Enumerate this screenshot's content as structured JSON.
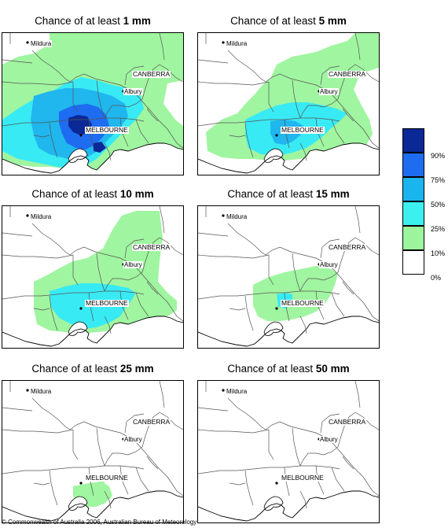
{
  "panels": [
    {
      "prefix": "Chance of at least ",
      "amount": "1 mm",
      "levels": {
        "green": 1,
        "cyan": 1,
        "med": 1,
        "blue": 1,
        "dark": 1
      }
    },
    {
      "prefix": "Chance of at least ",
      "amount": "5 mm",
      "levels": {
        "green": 1,
        "cyan": 1,
        "med": 1
      }
    },
    {
      "prefix": "Chance of at least ",
      "amount": "10 mm",
      "levels": {
        "green": 1,
        "cyan": 1
      }
    },
    {
      "prefix": "Chance of at least ",
      "amount": "15 mm",
      "levels": {
        "green": 1,
        "cyan": 1
      }
    },
    {
      "prefix": "Chance of at least ",
      "amount": "25 mm",
      "levels": {
        "green": 1
      }
    },
    {
      "prefix": "Chance of at least ",
      "amount": "50 mm",
      "levels": {}
    }
  ],
  "places": {
    "mildura": "Mildura",
    "canberra": "CANBERRA",
    "albury": "Albury",
    "melbourne": "MELBOURNE"
  },
  "legend": [
    {
      "color": "#0a2896",
      "label": ""
    },
    {
      "color": "#1e6cf0",
      "label": "90%"
    },
    {
      "color": "#1ab4ee",
      "label": "75%"
    },
    {
      "color": "#3cf0f0",
      "label": "50%"
    },
    {
      "color": "#9cf59c",
      "label": "25%"
    },
    {
      "color": "#ffffff",
      "label": "10%"
    },
    {
      "color": "",
      "label": "0%"
    }
  ],
  "colors": {
    "green": "#a0f5a0",
    "cyan": "#38eaf4",
    "med": "#20b6ee",
    "blue": "#1e6cf0",
    "dark": "#0a2896"
  },
  "copyright": "© Commonwealth of Australia 2006, Australian Bureau of Meteorology"
}
